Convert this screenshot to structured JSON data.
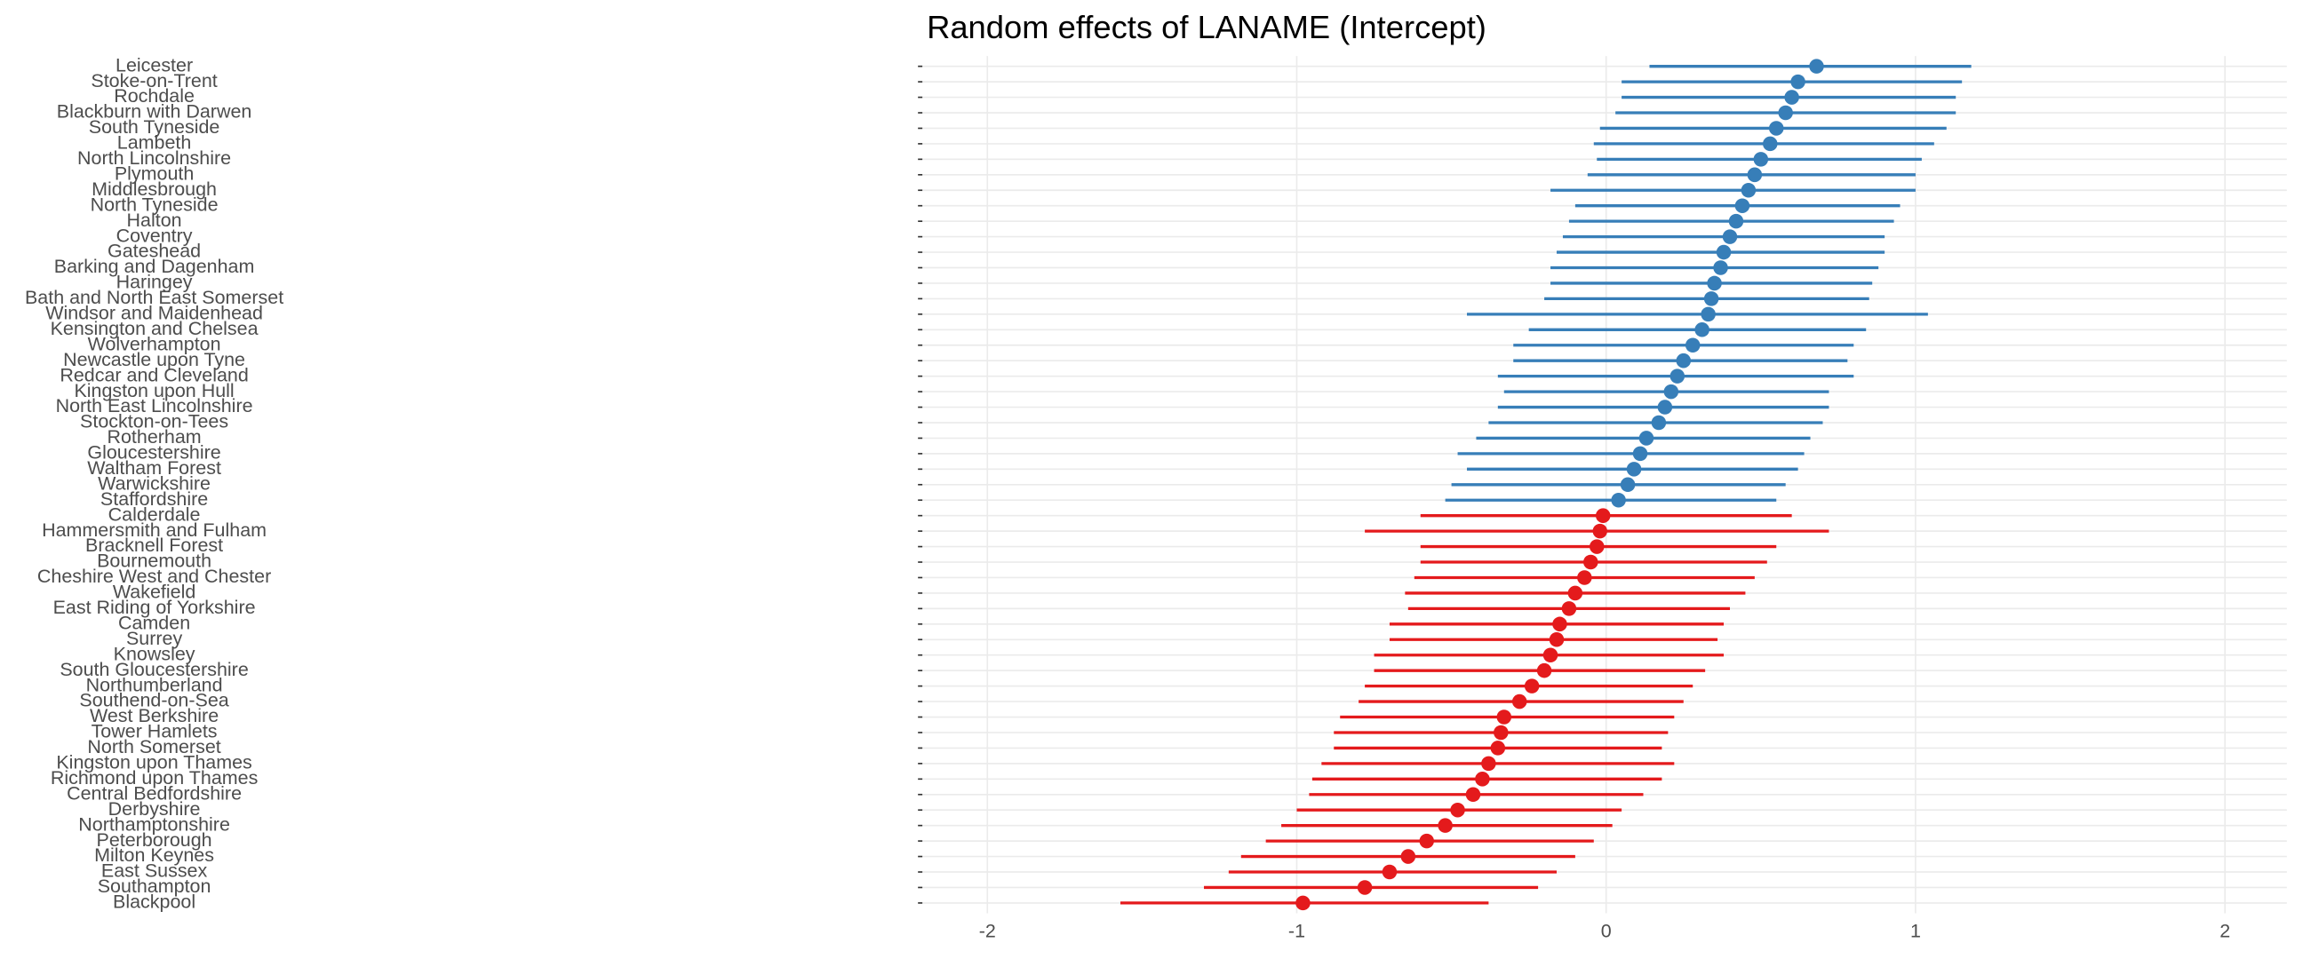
{
  "chart_data": {
    "type": "dotinterval",
    "title": "Random effects of LANAME (Intercept)",
    "categories": [
      "Leicester",
      "Stoke-on-Trent",
      "Rochdale",
      "Blackburn with Darwen",
      "South Tyneside",
      "Lambeth",
      "North Lincolnshire",
      "Plymouth",
      "Middlesbrough",
      "North Tyneside",
      "Halton",
      "Coventry",
      "Gateshead",
      "Barking and Dagenham",
      "Haringey",
      "Bath and North East Somerset",
      "Windsor and Maidenhead",
      "Kensington and Chelsea",
      "Wolverhampton",
      "Newcastle upon Tyne",
      "Redcar and Cleveland",
      "Kingston upon Hull",
      "North East Lincolnshire",
      "Stockton-on-Tees",
      "Rotherham",
      "Gloucestershire",
      "Waltham Forest",
      "Warwickshire",
      "Staffordshire",
      "Calderdale",
      "Hammersmith and Fulham",
      "Bracknell Forest",
      "Bournemouth",
      "Cheshire West and Chester",
      "Wakefield",
      "East Riding of Yorkshire",
      "Camden",
      "Surrey",
      "Knowsley",
      "South Gloucestershire",
      "Northumberland",
      "Southend-on-Sea",
      "West Berkshire",
      "Tower Hamlets",
      "North Somerset",
      "Kingston upon Thames",
      "Richmond upon Thames",
      "Central Bedfordshire",
      "Derbyshire",
      "Northamptonshire",
      "Peterborough",
      "Milton Keynes",
      "East Sussex",
      "Southampton",
      "Blackpool"
    ],
    "values": [
      0.68,
      0.62,
      0.6,
      0.58,
      0.55,
      0.53,
      0.5,
      0.48,
      0.46,
      0.44,
      0.42,
      0.4,
      0.38,
      0.37,
      0.35,
      0.34,
      0.33,
      0.31,
      0.28,
      0.25,
      0.23,
      0.21,
      0.19,
      0.17,
      0.13,
      0.11,
      0.09,
      0.07,
      0.04,
      -0.01,
      -0.02,
      -0.03,
      -0.05,
      -0.07,
      -0.1,
      -0.12,
      -0.15,
      -0.16,
      -0.18,
      -0.2,
      -0.24,
      -0.28,
      -0.33,
      -0.34,
      -0.35,
      -0.38,
      -0.4,
      -0.43,
      -0.48,
      -0.52,
      -0.58,
      -0.64,
      -0.7,
      -0.78,
      -0.98
    ],
    "lower": [
      0.14,
      0.05,
      0.05,
      0.03,
      -0.02,
      -0.04,
      -0.03,
      -0.06,
      -0.18,
      -0.1,
      -0.12,
      -0.14,
      -0.16,
      -0.18,
      -0.18,
      -0.2,
      -0.45,
      -0.25,
      -0.3,
      -0.3,
      -0.35,
      -0.33,
      -0.35,
      -0.38,
      -0.42,
      -0.48,
      -0.45,
      -0.5,
      -0.52,
      -0.6,
      -0.78,
      -0.6,
      -0.6,
      -0.62,
      -0.65,
      -0.64,
      -0.7,
      -0.7,
      -0.75,
      -0.75,
      -0.78,
      -0.8,
      -0.86,
      -0.88,
      -0.88,
      -0.92,
      -0.95,
      -0.96,
      -1.0,
      -1.05,
      -1.1,
      -1.18,
      -1.22,
      -1.3,
      -1.57
    ],
    "upper": [
      1.18,
      1.15,
      1.13,
      1.13,
      1.1,
      1.06,
      1.02,
      1.0,
      1.0,
      0.95,
      0.93,
      0.9,
      0.9,
      0.88,
      0.86,
      0.85,
      1.04,
      0.84,
      0.8,
      0.78,
      0.8,
      0.72,
      0.72,
      0.7,
      0.66,
      0.64,
      0.62,
      0.58,
      0.55,
      0.6,
      0.72,
      0.55,
      0.52,
      0.48,
      0.45,
      0.4,
      0.38,
      0.36,
      0.38,
      0.32,
      0.28,
      0.25,
      0.22,
      0.2,
      0.18,
      0.22,
      0.18,
      0.12,
      0.05,
      0.02,
      -0.04,
      -0.1,
      -0.16,
      -0.22,
      -0.38
    ],
    "positive_color": "#377eb8",
    "negative_color": "#e41a1c",
    "xlim": [
      -2.21,
      2.2
    ],
    "xticks": [
      -2,
      -1,
      0,
      1,
      2
    ],
    "grid": true
  }
}
